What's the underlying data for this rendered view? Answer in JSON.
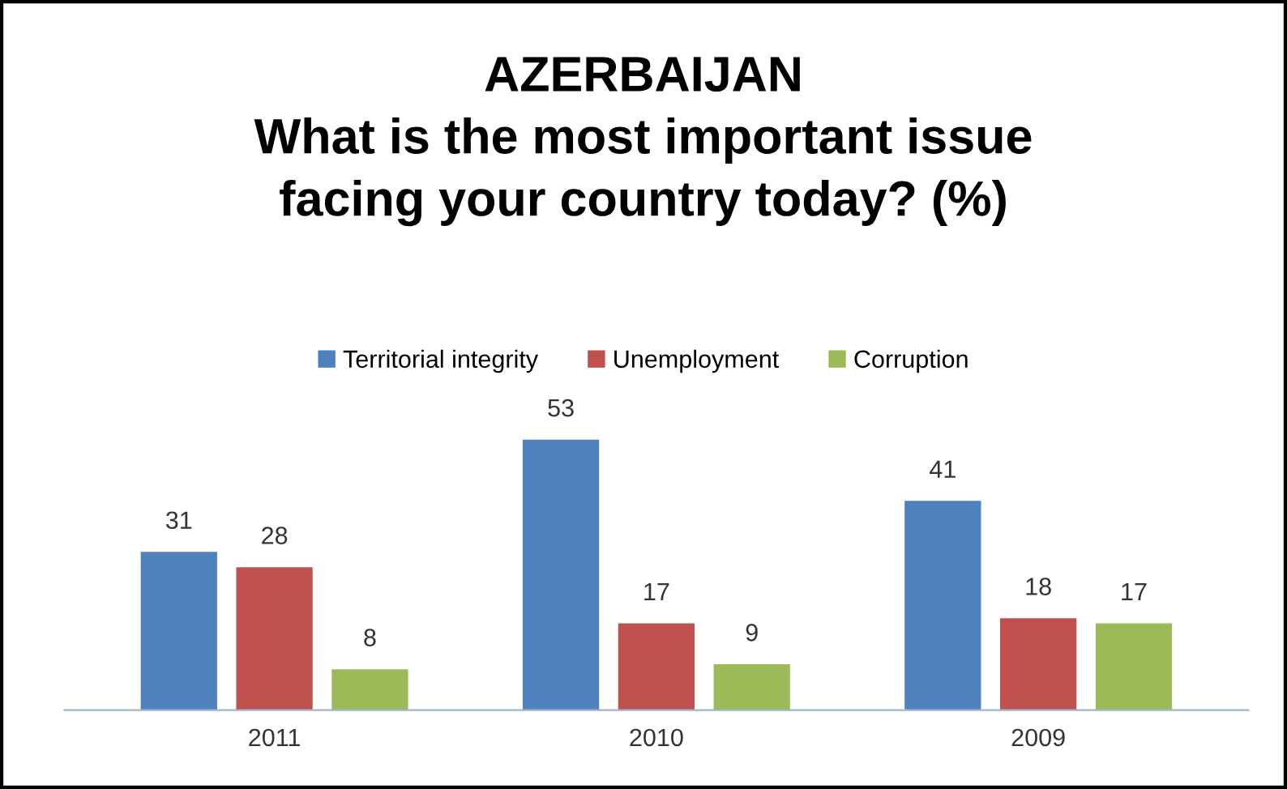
{
  "chart_data": {
    "type": "bar",
    "title": "AZERBAIJAN\nWhat is the most important issue\nfacing your country today? (%)",
    "categories": [
      "2011",
      "2010",
      "2009"
    ],
    "series": [
      {
        "name": "Territorial integrity",
        "color": "#4f81bd",
        "values": [
          31,
          53,
          41
        ]
      },
      {
        "name": "Unemployment",
        "color": "#c0504d",
        "values": [
          28,
          17,
          18
        ]
      },
      {
        "name": "Corruption",
        "color": "#9bbb59",
        "values": [
          8,
          9,
          17
        ]
      }
    ],
    "data_labels": true,
    "legend": "top",
    "grid": false
  }
}
